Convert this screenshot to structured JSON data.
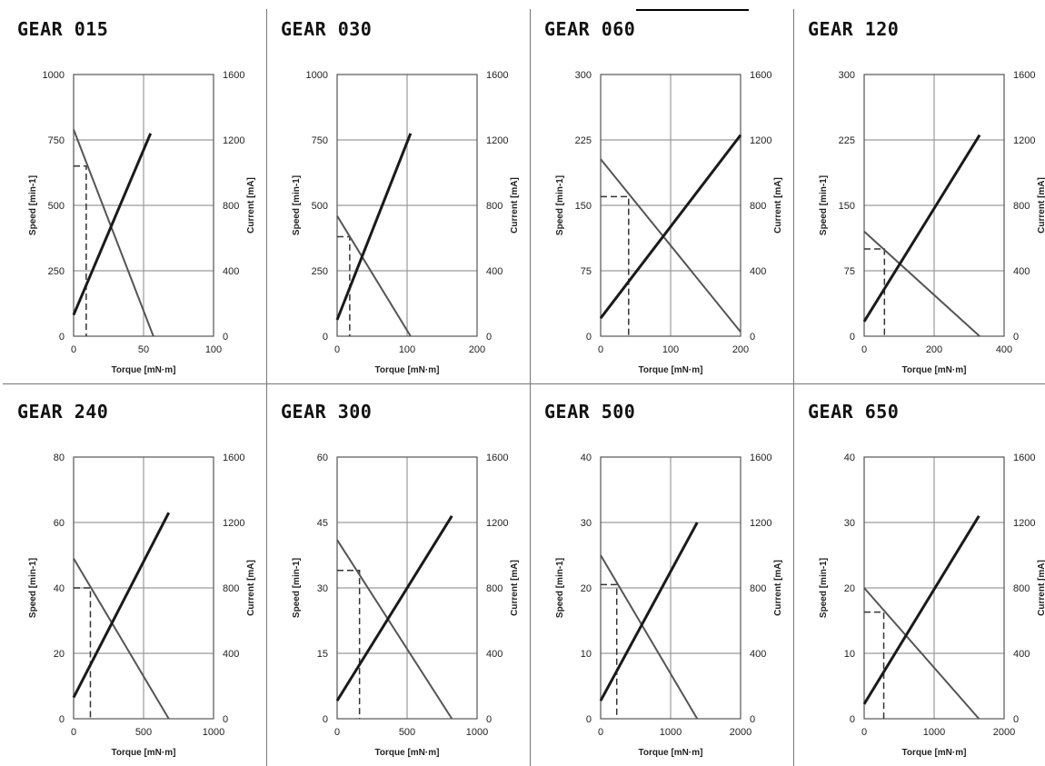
{
  "chart_data": [
    {
      "title": "GEAR 015",
      "type": "line",
      "xlabel": "Torque [mN·m]",
      "ylabel": "Speed [min-1]",
      "y2label": "Current [mA]",
      "xlim": [
        0,
        100
      ],
      "ylim": [
        0,
        1000
      ],
      "y2lim": [
        0,
        1600
      ],
      "xticks": [
        "0",
        "50",
        "100"
      ],
      "yticks": [
        "0",
        "250",
        "500",
        "750",
        "1000"
      ],
      "y2ticks": [
        "0",
        "400",
        "800",
        "1200",
        "1600"
      ],
      "series": [
        {
          "axis": "left",
          "x": [
            0,
            57
          ],
          "y": [
            790,
            0
          ]
        },
        {
          "axis": "right",
          "x": [
            0,
            55
          ],
          "y": [
            130,
            1240
          ]
        }
      ],
      "rated": {
        "torque": 9,
        "speed": 650
      },
      "grid": true
    },
    {
      "title": "GEAR 030",
      "type": "line",
      "xlabel": "Torque [mN·m]",
      "ylabel": "Speed [min-1]",
      "y2label": "Current [mA]",
      "xlim": [
        0,
        200
      ],
      "ylim": [
        0,
        1000
      ],
      "y2lim": [
        0,
        1600
      ],
      "xticks": [
        "0",
        "100",
        "200"
      ],
      "yticks": [
        "0",
        "250",
        "500",
        "750",
        "1000"
      ],
      "y2ticks": [
        "0",
        "400",
        "800",
        "1200",
        "1600"
      ],
      "series": [
        {
          "axis": "left",
          "x": [
            0,
            105
          ],
          "y": [
            460,
            0
          ]
        },
        {
          "axis": "right",
          "x": [
            0,
            105
          ],
          "y": [
            100,
            1240
          ]
        }
      ],
      "rated": {
        "torque": 18,
        "speed": 380
      },
      "grid": true
    },
    {
      "title": "GEAR 060",
      "type": "line",
      "xlabel": "Torque [mN·m]",
      "ylabel": "Speed [min-1]",
      "y2label": "Current [mA]",
      "xlim": [
        0,
        200
      ],
      "ylim": [
        0,
        300
      ],
      "y2lim": [
        0,
        1600
      ],
      "xticks": [
        "0",
        "100",
        "200"
      ],
      "yticks": [
        "0",
        "75",
        "150",
        "225",
        "300"
      ],
      "y2ticks": [
        "0",
        "400",
        "800",
        "1200",
        "1600"
      ],
      "series": [
        {
          "axis": "left",
          "x": [
            0,
            200
          ],
          "y": [
            203,
            5
          ]
        },
        {
          "axis": "right",
          "x": [
            0,
            200
          ],
          "y": [
            110,
            1230
          ]
        }
      ],
      "rated": {
        "torque": 40,
        "speed": 160
      },
      "grid": true
    },
    {
      "title": "GEAR 120",
      "type": "line",
      "xlabel": "Torque [mN·m]",
      "ylabel": "Speed [min-1]",
      "y2label": "Current [mA]",
      "xlim": [
        0,
        400
      ],
      "ylim": [
        0,
        300
      ],
      "y2lim": [
        0,
        1600
      ],
      "xticks": [
        "0",
        "200",
        "400"
      ],
      "yticks": [
        "0",
        "75",
        "150",
        "225",
        "300"
      ],
      "y2ticks": [
        "0",
        "400",
        "800",
        "1200",
        "1600"
      ],
      "series": [
        {
          "axis": "left",
          "x": [
            0,
            330
          ],
          "y": [
            120,
            0
          ]
        },
        {
          "axis": "right",
          "x": [
            0,
            330
          ],
          "y": [
            90,
            1230
          ]
        }
      ],
      "rated": {
        "torque": 58,
        "speed": 100
      },
      "grid": true
    },
    {
      "title": "GEAR 240",
      "type": "line",
      "xlabel": "Torque [mN·m]",
      "ylabel": "Speed [min-1]",
      "y2label": "Current [mA]",
      "xlim": [
        0,
        1000
      ],
      "ylim": [
        0,
        80
      ],
      "y2lim": [
        0,
        1600
      ],
      "xticks": [
        "0",
        "500",
        "1000"
      ],
      "yticks": [
        "0",
        "20",
        "40",
        "60",
        "80"
      ],
      "y2ticks": [
        "0",
        "400",
        "800",
        "1200",
        "1600"
      ],
      "series": [
        {
          "axis": "left",
          "x": [
            0,
            680
          ],
          "y": [
            49,
            0
          ]
        },
        {
          "axis": "right",
          "x": [
            0,
            680
          ],
          "y": [
            130,
            1260
          ]
        }
      ],
      "rated": {
        "torque": 120,
        "speed": 40
      },
      "grid": true
    },
    {
      "title": "GEAR 300",
      "type": "line",
      "xlabel": "Torque [mN·m]",
      "ylabel": "Speed [min-1]",
      "y2label": "Current [mA]",
      "xlim": [
        0,
        1000
      ],
      "ylim": [
        0,
        60
      ],
      "y2lim": [
        0,
        1600
      ],
      "xticks": [
        "0",
        "500",
        "1000"
      ],
      "yticks": [
        "0",
        "15",
        "30",
        "45",
        "60"
      ],
      "y2ticks": [
        "0",
        "400",
        "800",
        "1200",
        "1600"
      ],
      "series": [
        {
          "axis": "left",
          "x": [
            0,
            820
          ],
          "y": [
            41,
            0
          ]
        },
        {
          "axis": "right",
          "x": [
            0,
            820
          ],
          "y": [
            110,
            1240
          ]
        }
      ],
      "rated": {
        "torque": 160,
        "speed": 34
      },
      "grid": true
    },
    {
      "title": "GEAR 500",
      "type": "line",
      "xlabel": "Torque [mN·m]",
      "ylabel": "Speed [min-1]",
      "y2label": "Current [mA]",
      "xlim": [
        0,
        2000
      ],
      "ylim": [
        0,
        40
      ],
      "y2lim": [
        0,
        1600
      ],
      "xticks": [
        "0",
        "1000",
        "2000"
      ],
      "yticks": [
        "0",
        "10",
        "20",
        "30",
        "40"
      ],
      "y2ticks": [
        "0",
        "400",
        "800",
        "1200",
        "1600"
      ],
      "series": [
        {
          "axis": "left",
          "x": [
            0,
            1380
          ],
          "y": [
            25,
            0
          ]
        },
        {
          "axis": "right",
          "x": [
            0,
            1380
          ],
          "y": [
            110,
            1200
          ]
        }
      ],
      "rated": {
        "torque": 230,
        "speed": 20.5
      },
      "grid": true
    },
    {
      "title": "GEAR 650",
      "type": "line",
      "xlabel": "Torque [mN·m]",
      "ylabel": "Speed [min-1]",
      "y2label": "Current [mA]",
      "xlim": [
        0,
        2000
      ],
      "ylim": [
        0,
        40
      ],
      "y2lim": [
        0,
        1600
      ],
      "xticks": [
        "0",
        "1000",
        "2000"
      ],
      "yticks": [
        "0",
        "10",
        "20",
        "30",
        "40"
      ],
      "y2ticks": [
        "0",
        "400",
        "800",
        "1200",
        "1600"
      ],
      "series": [
        {
          "axis": "left",
          "x": [
            0,
            1640
          ],
          "y": [
            20,
            0
          ]
        },
        {
          "axis": "right",
          "x": [
            0,
            1640
          ],
          "y": [
            90,
            1240
          ]
        }
      ],
      "rated": {
        "torque": 280,
        "speed": 16.3
      },
      "grid": true
    }
  ],
  "colors": {
    "current_line": "#1a1a1a",
    "speed_line": "#555555",
    "grid": "#9a9a9a",
    "rated_guide": "#333333"
  }
}
